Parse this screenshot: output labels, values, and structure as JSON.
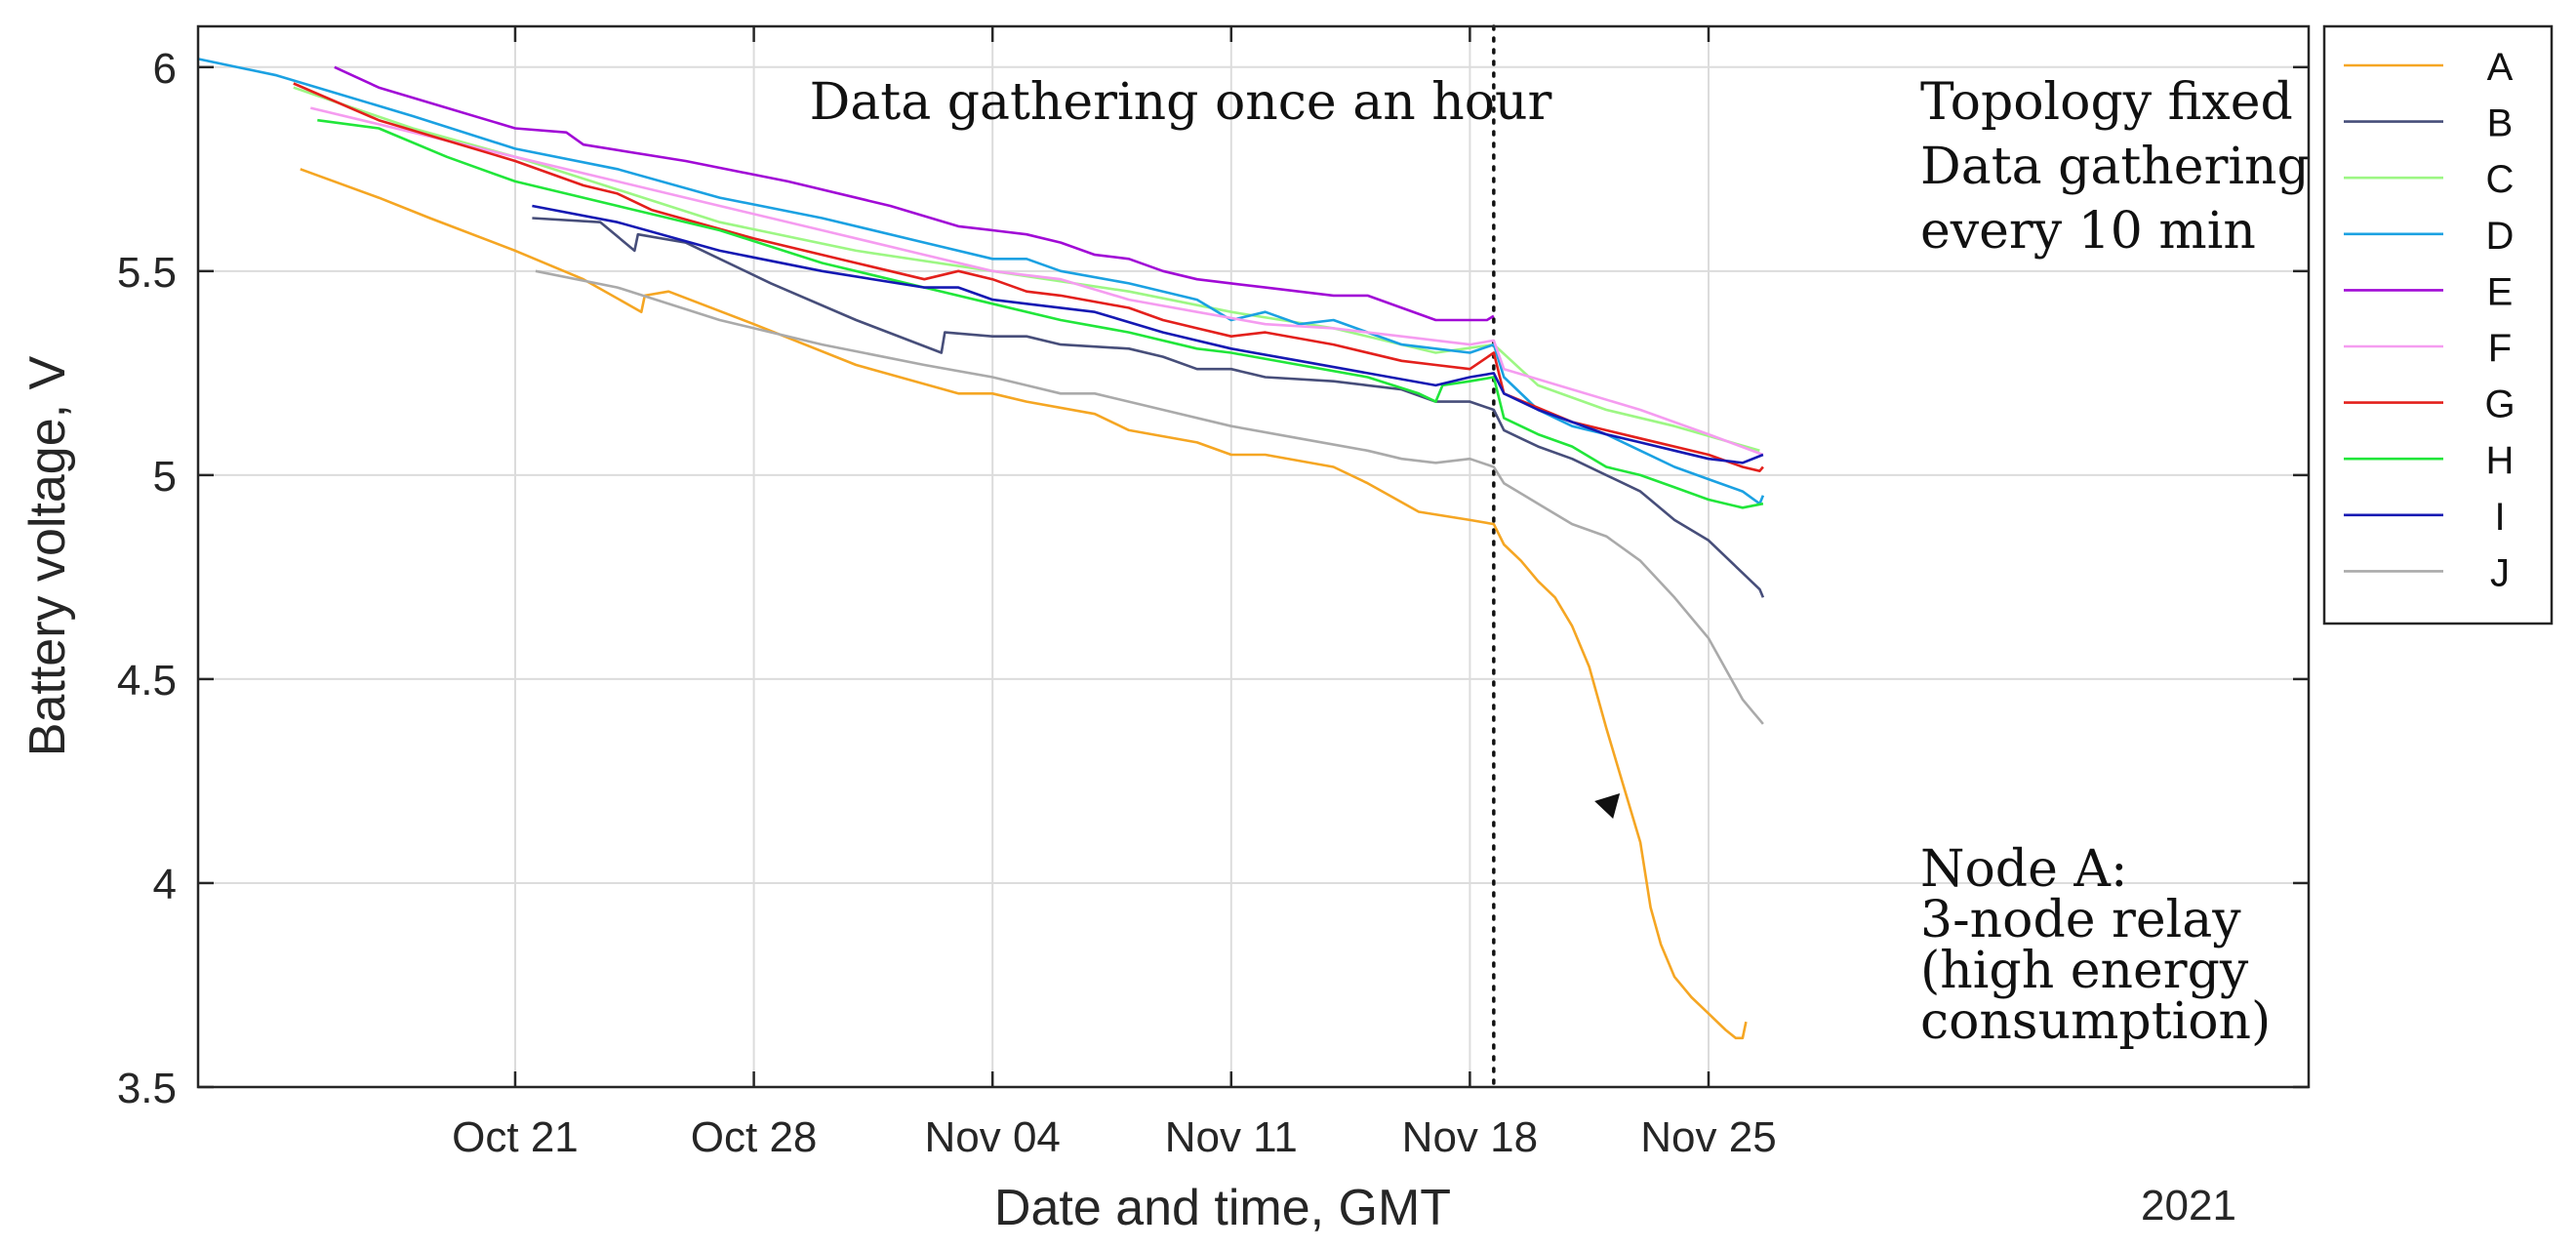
{
  "chart_data": {
    "type": "line",
    "xlabel": "Date and time, GMT",
    "ylabel": "Battery voltage, V",
    "xlim": [
      -9.3,
      52.6
    ],
    "ylim": [
      3.5,
      6.1
    ],
    "x_unit": "days since Oct 21, 2021",
    "x_ticks": [
      {
        "x": 0,
        "label": "Oct 21"
      },
      {
        "x": 7,
        "label": "Oct 28"
      },
      {
        "x": 14,
        "label": "Nov 04"
      },
      {
        "x": 21,
        "label": "Nov 11"
      },
      {
        "x": 28,
        "label": "Nov 18"
      },
      {
        "x": 35,
        "label": "Nov 25"
      }
    ],
    "x_secondary_label": "2021",
    "y_ticks": [
      3.5,
      4,
      4.5,
      5,
      5.5,
      6
    ],
    "y_tick_labels": [
      "3.5",
      "4",
      "4.5",
      "5",
      "5.5",
      "6"
    ],
    "grid": true,
    "legend_position": "outside-top-right",
    "vertical_marker": {
      "x": 28.7,
      "style": "dotted"
    },
    "annotations": [
      {
        "id": "left",
        "lines": [
          "Data gathering once an hour"
        ]
      },
      {
        "id": "right-top",
        "lines": [
          "Topology fixed",
          "Data gathering",
          "every 10 min"
        ]
      },
      {
        "id": "node-a",
        "lines": [
          "Node A:",
          "3-node relay",
          "(high energy",
          "consumption)"
        ]
      }
    ],
    "arrow": {
      "points_to": [
        32.4,
        4.22
      ]
    },
    "series": [
      {
        "name": "A",
        "color": "#f5a623",
        "points": [
          [
            -6.3,
            5.75
          ],
          [
            -4,
            5.68
          ],
          [
            -2.5,
            5.63
          ],
          [
            0,
            5.55
          ],
          [
            2,
            5.48
          ],
          [
            3.7,
            5.4
          ],
          [
            3.8,
            5.44
          ],
          [
            4.5,
            5.45
          ],
          [
            7,
            5.37
          ],
          [
            10,
            5.27
          ],
          [
            13,
            5.2
          ],
          [
            14,
            5.2
          ],
          [
            15,
            5.18
          ],
          [
            17,
            5.15
          ],
          [
            18,
            5.11
          ],
          [
            20,
            5.08
          ],
          [
            21,
            5.05
          ],
          [
            22,
            5.05
          ],
          [
            24,
            5.02
          ],
          [
            25,
            4.98
          ],
          [
            26.5,
            4.91
          ],
          [
            28,
            4.89
          ],
          [
            28.7,
            4.88
          ],
          [
            29,
            4.83
          ],
          [
            29.5,
            4.79
          ],
          [
            30,
            4.74
          ],
          [
            30.5,
            4.7
          ],
          [
            31,
            4.63
          ],
          [
            31.5,
            4.53
          ],
          [
            32,
            4.38
          ],
          [
            32.5,
            4.24
          ],
          [
            33,
            4.1
          ],
          [
            33.3,
            3.94
          ],
          [
            33.6,
            3.85
          ],
          [
            34,
            3.77
          ],
          [
            34.5,
            3.72
          ],
          [
            35,
            3.68
          ],
          [
            35.5,
            3.64
          ],
          [
            35.8,
            3.62
          ],
          [
            36,
            3.62
          ],
          [
            36.1,
            3.66
          ]
        ]
      },
      {
        "name": "B",
        "color": "#474e7a",
        "points": [
          [
            0.5,
            5.63
          ],
          [
            2.5,
            5.62
          ],
          [
            3.5,
            5.55
          ],
          [
            3.6,
            5.59
          ],
          [
            5,
            5.57
          ],
          [
            7.5,
            5.47
          ],
          [
            10,
            5.38
          ],
          [
            12.5,
            5.3
          ],
          [
            12.6,
            5.35
          ],
          [
            14,
            5.34
          ],
          [
            15,
            5.34
          ],
          [
            16,
            5.32
          ],
          [
            18,
            5.31
          ],
          [
            19,
            5.29
          ],
          [
            20,
            5.26
          ],
          [
            21,
            5.26
          ],
          [
            22,
            5.24
          ],
          [
            24,
            5.23
          ],
          [
            25,
            5.22
          ],
          [
            26,
            5.21
          ],
          [
            27,
            5.18
          ],
          [
            28,
            5.18
          ],
          [
            28.7,
            5.16
          ],
          [
            29,
            5.11
          ],
          [
            29.5,
            5.09
          ],
          [
            30,
            5.07
          ],
          [
            31,
            5.04
          ],
          [
            32,
            5
          ],
          [
            33,
            4.96
          ],
          [
            34,
            4.89
          ],
          [
            35,
            4.84
          ],
          [
            36,
            4.76
          ],
          [
            36.5,
            4.72
          ],
          [
            36.6,
            4.7
          ]
        ]
      },
      {
        "name": "C",
        "color": "#9df784",
        "points": [
          [
            -6.5,
            5.95
          ],
          [
            -3,
            5.85
          ],
          [
            0,
            5.78
          ],
          [
            3,
            5.7
          ],
          [
            6,
            5.62
          ],
          [
            10,
            5.55
          ],
          [
            14,
            5.5
          ],
          [
            18,
            5.45
          ],
          [
            21,
            5.4
          ],
          [
            24,
            5.36
          ],
          [
            27,
            5.3
          ],
          [
            28.7,
            5.32
          ],
          [
            30,
            5.22
          ],
          [
            32,
            5.16
          ],
          [
            34,
            5.12
          ],
          [
            36.5,
            5.06
          ]
        ]
      },
      {
        "name": "D",
        "color": "#1ba1e2",
        "points": [
          [
            -9.3,
            6.02
          ],
          [
            -7,
            5.98
          ],
          [
            -5,
            5.93
          ],
          [
            -3,
            5.88
          ],
          [
            0,
            5.8
          ],
          [
            3,
            5.75
          ],
          [
            6,
            5.68
          ],
          [
            9,
            5.63
          ],
          [
            12,
            5.57
          ],
          [
            14,
            5.53
          ],
          [
            15,
            5.53
          ],
          [
            16,
            5.5
          ],
          [
            18,
            5.47
          ],
          [
            20,
            5.43
          ],
          [
            21,
            5.38
          ],
          [
            22,
            5.4
          ],
          [
            23,
            5.37
          ],
          [
            24,
            5.38
          ],
          [
            25,
            5.35
          ],
          [
            26,
            5.32
          ],
          [
            27,
            5.31
          ],
          [
            28,
            5.3
          ],
          [
            28.7,
            5.32
          ],
          [
            29,
            5.24
          ],
          [
            30,
            5.16
          ],
          [
            31,
            5.12
          ],
          [
            32,
            5.1
          ],
          [
            33,
            5.06
          ],
          [
            34,
            5.02
          ],
          [
            35,
            4.99
          ],
          [
            36,
            4.96
          ],
          [
            36.5,
            4.93
          ],
          [
            36.6,
            4.95
          ]
        ]
      },
      {
        "name": "E",
        "color": "#a10ad6",
        "points": [
          [
            -5.3,
            6
          ],
          [
            -4,
            5.95
          ],
          [
            -2,
            5.9
          ],
          [
            0,
            5.85
          ],
          [
            1.5,
            5.84
          ],
          [
            2,
            5.81
          ],
          [
            5,
            5.77
          ],
          [
            8,
            5.72
          ],
          [
            11,
            5.66
          ],
          [
            13,
            5.61
          ],
          [
            14,
            5.6
          ],
          [
            15,
            5.59
          ],
          [
            16,
            5.57
          ],
          [
            17,
            5.54
          ],
          [
            18,
            5.53
          ],
          [
            19,
            5.5
          ],
          [
            20,
            5.48
          ],
          [
            21,
            5.47
          ],
          [
            22,
            5.46
          ],
          [
            24,
            5.44
          ],
          [
            25,
            5.44
          ],
          [
            27,
            5.38
          ],
          [
            28,
            5.38
          ],
          [
            28.5,
            5.38
          ],
          [
            28.7,
            5.39
          ]
        ]
      },
      {
        "name": "F",
        "color": "#f59cf0",
        "points": [
          [
            -6,
            5.9
          ],
          [
            -3,
            5.84
          ],
          [
            0,
            5.78
          ],
          [
            3,
            5.72
          ],
          [
            6,
            5.66
          ],
          [
            9,
            5.6
          ],
          [
            12,
            5.54
          ],
          [
            14,
            5.5
          ],
          [
            16,
            5.48
          ],
          [
            18,
            5.43
          ],
          [
            20,
            5.4
          ],
          [
            22,
            5.37
          ],
          [
            24,
            5.36
          ],
          [
            26,
            5.34
          ],
          [
            28,
            5.32
          ],
          [
            28.7,
            5.33
          ],
          [
            29,
            5.26
          ],
          [
            31,
            5.21
          ],
          [
            33,
            5.16
          ],
          [
            35,
            5.1
          ],
          [
            36.6,
            5.05
          ]
        ]
      },
      {
        "name": "G",
        "color": "#e3201c",
        "points": [
          [
            -6.5,
            5.96
          ],
          [
            -4,
            5.87
          ],
          [
            -2,
            5.82
          ],
          [
            0,
            5.77
          ],
          [
            2,
            5.71
          ],
          [
            3,
            5.69
          ],
          [
            4,
            5.65
          ],
          [
            7,
            5.58
          ],
          [
            10,
            5.52
          ],
          [
            12,
            5.48
          ],
          [
            13,
            5.5
          ],
          [
            14,
            5.48
          ],
          [
            15,
            5.45
          ],
          [
            16,
            5.44
          ],
          [
            18,
            5.41
          ],
          [
            19,
            5.38
          ],
          [
            20,
            5.36
          ],
          [
            21,
            5.34
          ],
          [
            22,
            5.35
          ],
          [
            24,
            5.32
          ],
          [
            26,
            5.28
          ],
          [
            27,
            5.27
          ],
          [
            28,
            5.26
          ],
          [
            28.7,
            5.3
          ],
          [
            29,
            5.2
          ],
          [
            31,
            5.13
          ],
          [
            33,
            5.09
          ],
          [
            35,
            5.05
          ],
          [
            36,
            5.02
          ],
          [
            36.5,
            5.01
          ],
          [
            36.6,
            5.02
          ]
        ]
      },
      {
        "name": "H",
        "color": "#21e63a",
        "points": [
          [
            -5.8,
            5.87
          ],
          [
            -4,
            5.85
          ],
          [
            -2,
            5.78
          ],
          [
            0,
            5.72
          ],
          [
            3,
            5.66
          ],
          [
            6,
            5.6
          ],
          [
            9,
            5.52
          ],
          [
            12,
            5.46
          ],
          [
            14,
            5.42
          ],
          [
            16,
            5.38
          ],
          [
            18,
            5.35
          ],
          [
            20,
            5.31
          ],
          [
            21,
            5.3
          ],
          [
            23,
            5.27
          ],
          [
            25,
            5.24
          ],
          [
            26.5,
            5.2
          ],
          [
            27,
            5.18
          ],
          [
            27.2,
            5.22
          ],
          [
            28,
            5.23
          ],
          [
            28.7,
            5.24
          ],
          [
            29,
            5.14
          ],
          [
            30,
            5.1
          ],
          [
            31,
            5.07
          ],
          [
            32,
            5.02
          ],
          [
            33,
            5
          ],
          [
            34,
            4.97
          ],
          [
            35,
            4.94
          ],
          [
            36,
            4.92
          ],
          [
            36.6,
            4.93
          ]
        ]
      },
      {
        "name": "I",
        "color": "#1519b3",
        "points": [
          [
            0.5,
            5.66
          ],
          [
            3,
            5.62
          ],
          [
            6,
            5.55
          ],
          [
            9,
            5.5
          ],
          [
            12,
            5.46
          ],
          [
            13,
            5.46
          ],
          [
            14,
            5.43
          ],
          [
            15,
            5.42
          ],
          [
            17,
            5.4
          ],
          [
            19,
            5.35
          ],
          [
            21,
            5.31
          ],
          [
            23,
            5.28
          ],
          [
            25,
            5.25
          ],
          [
            27,
            5.22
          ],
          [
            28,
            5.24
          ],
          [
            28.7,
            5.25
          ],
          [
            29,
            5.2
          ],
          [
            30,
            5.16
          ],
          [
            31,
            5.13
          ],
          [
            32,
            5.1
          ],
          [
            33,
            5.08
          ],
          [
            34,
            5.06
          ],
          [
            35,
            5.04
          ],
          [
            36,
            5.03
          ],
          [
            36.6,
            5.05
          ]
        ]
      },
      {
        "name": "J",
        "color": "#aaaaaa",
        "points": [
          [
            0.6,
            5.5
          ],
          [
            3,
            5.46
          ],
          [
            6,
            5.38
          ],
          [
            9,
            5.32
          ],
          [
            12,
            5.27
          ],
          [
            14,
            5.24
          ],
          [
            15,
            5.22
          ],
          [
            16,
            5.2
          ],
          [
            17,
            5.2
          ],
          [
            19,
            5.16
          ],
          [
            21,
            5.12
          ],
          [
            23,
            5.09
          ],
          [
            25,
            5.06
          ],
          [
            26,
            5.04
          ],
          [
            27,
            5.03
          ],
          [
            28,
            5.04
          ],
          [
            28.7,
            5.02
          ],
          [
            29,
            4.98
          ],
          [
            30,
            4.93
          ],
          [
            31,
            4.88
          ],
          [
            32,
            4.85
          ],
          [
            33,
            4.79
          ],
          [
            34,
            4.7
          ],
          [
            35,
            4.6
          ],
          [
            36,
            4.45
          ],
          [
            36.3,
            4.42
          ],
          [
            36.5,
            4.4
          ],
          [
            36.6,
            4.39
          ]
        ]
      }
    ]
  }
}
